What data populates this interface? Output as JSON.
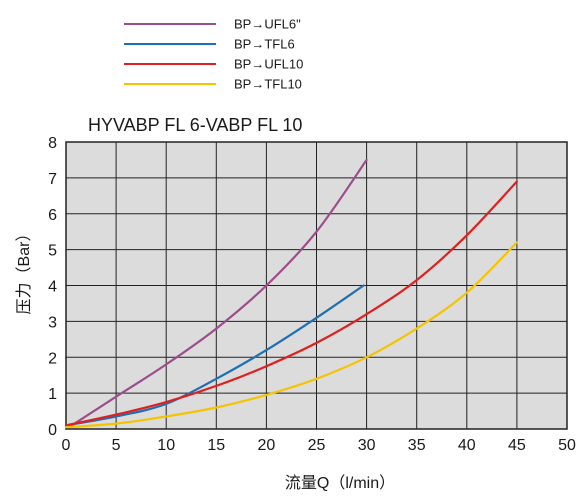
{
  "chart_data": {
    "type": "line",
    "title": "HYVABP FL 6-VABP FL 10",
    "xlabel": "流量Q（l/min）",
    "ylabel": "压力（Bar）",
    "xlim": [
      0,
      50
    ],
    "ylim": [
      0,
      8
    ],
    "xticks": [
      "0",
      "5",
      "10",
      "15",
      "20",
      "25",
      "30",
      "35",
      "40",
      "45",
      "50"
    ],
    "yticks": [
      "0",
      "1",
      "2",
      "3",
      "4",
      "5",
      "6",
      "7",
      "8"
    ],
    "grid": true,
    "background": "#dcdcdc",
    "legend_position": "top-center",
    "series": [
      {
        "name": "BP→UFL6\"",
        "color": "#9b4d8c",
        "x": [
          0.3,
          5,
          10,
          15,
          20,
          25,
          30
        ],
        "y": [
          0.05,
          0.9,
          1.8,
          2.8,
          4.0,
          5.5,
          7.5
        ]
      },
      {
        "name": "BP→TFL6",
        "color": "#1f6fb4",
        "x": [
          0,
          5,
          10,
          15,
          20,
          25,
          29.7
        ],
        "y": [
          0.1,
          0.35,
          0.7,
          1.4,
          2.2,
          3.1,
          4.0
        ]
      },
      {
        "name": "BP→UFL10",
        "color": "#e02020",
        "x": [
          0,
          5,
          10,
          15,
          20,
          25,
          30,
          35,
          40,
          45
        ],
        "y": [
          0.1,
          0.4,
          0.75,
          1.2,
          1.75,
          2.4,
          3.2,
          4.15,
          5.4,
          6.9
        ]
      },
      {
        "name": "BP→TFL10",
        "color": "#f5c400",
        "x": [
          0,
          5,
          10,
          15,
          20,
          25,
          30,
          35,
          40,
          45
        ],
        "y": [
          0.05,
          0.15,
          0.35,
          0.6,
          0.95,
          1.4,
          2.0,
          2.8,
          3.8,
          5.2
        ]
      }
    ]
  }
}
